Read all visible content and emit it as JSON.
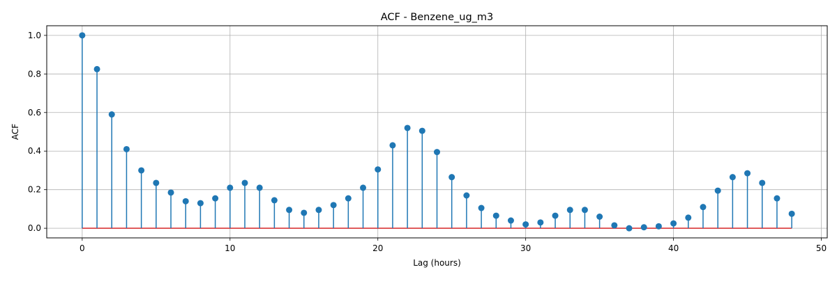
{
  "chart_data": {
    "type": "stem",
    "title": "ACF - Benzene_ug_m3",
    "xlabel": "Lag (hours)",
    "ylabel": "ACF",
    "xlim": [
      -2.4,
      50.4
    ],
    "ylim": [
      -0.05,
      1.05
    ],
    "xticks": [
      0,
      10,
      20,
      30,
      40,
      50
    ],
    "xtick_labels": [
      "0",
      "10",
      "20",
      "30",
      "40",
      "50"
    ],
    "yticks": [
      0.0,
      0.2,
      0.4,
      0.6,
      0.8,
      1.0
    ],
    "ytick_labels": [
      "0.0",
      "0.2",
      "0.4",
      "0.6",
      "0.8",
      "1.0"
    ],
    "grid": true,
    "series": [
      {
        "x": [
          0,
          1,
          2,
          3,
          4,
          5,
          6,
          7,
          8,
          9,
          10,
          11,
          12,
          13,
          14,
          15,
          16,
          17,
          18,
          19,
          20,
          21,
          22,
          23,
          24,
          25,
          26,
          27,
          28,
          29,
          30,
          31,
          32,
          33,
          34,
          35,
          36,
          37,
          38,
          39,
          40,
          41,
          42,
          43,
          44,
          45,
          46,
          47,
          48
        ],
        "values": [
          1.0,
          0.825,
          0.59,
          0.41,
          0.3,
          0.235,
          0.185,
          0.14,
          0.13,
          0.155,
          0.21,
          0.235,
          0.21,
          0.145,
          0.095,
          0.08,
          0.095,
          0.12,
          0.155,
          0.21,
          0.305,
          0.43,
          0.52,
          0.505,
          0.395,
          0.265,
          0.17,
          0.105,
          0.065,
          0.04,
          0.02,
          0.03,
          0.065,
          0.095,
          0.095,
          0.06,
          0.015,
          0.0,
          0.005,
          0.01,
          0.025,
          0.055,
          0.11,
          0.195,
          0.265,
          0.285,
          0.235,
          0.155,
          0.075
        ]
      }
    ],
    "colors": {
      "stem": "#1f77b4",
      "marker": "#1f77b4",
      "baseline": "#d62728",
      "grid": "#b0b0b0",
      "axis": "#000000"
    }
  }
}
